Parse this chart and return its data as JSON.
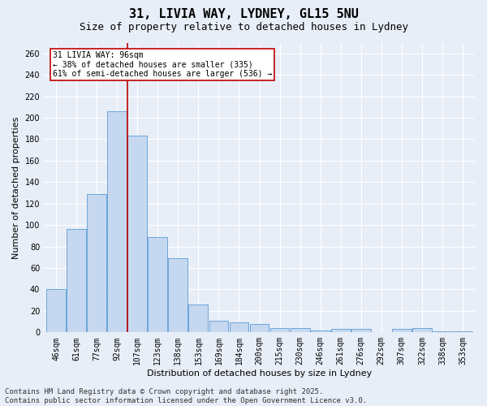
{
  "title_line1": "31, LIVIA WAY, LYDNEY, GL15 5NU",
  "title_line2": "Size of property relative to detached houses in Lydney",
  "xlabel": "Distribution of detached houses by size in Lydney",
  "ylabel": "Number of detached properties",
  "categories": [
    "46sqm",
    "61sqm",
    "77sqm",
    "92sqm",
    "107sqm",
    "123sqm",
    "138sqm",
    "153sqm",
    "169sqm",
    "184sqm",
    "200sqm",
    "215sqm",
    "230sqm",
    "246sqm",
    "261sqm",
    "276sqm",
    "292sqm",
    "307sqm",
    "322sqm",
    "338sqm",
    "353sqm"
  ],
  "values": [
    40,
    96,
    129,
    206,
    183,
    89,
    69,
    26,
    11,
    9,
    8,
    4,
    4,
    2,
    3,
    3,
    0,
    3,
    4,
    1,
    1
  ],
  "bar_color": "#c5d8f0",
  "bar_edge_color": "#5b9bd5",
  "background_color": "#e8eef7",
  "grid_color": "#ffffff",
  "vline_x": 3.5,
  "vline_color": "#c00000",
  "annotation_line1": "31 LIVIA WAY: 96sqm",
  "annotation_line2": "← 38% of detached houses are smaller (335)",
  "annotation_line3": "61% of semi-detached houses are larger (536) →",
  "annotation_box_color": "#ffffff",
  "annotation_box_edge_color": "#c00000",
  "ylim": [
    0,
    270
  ],
  "yticks": [
    0,
    20,
    40,
    60,
    80,
    100,
    120,
    140,
    160,
    180,
    200,
    220,
    240,
    260
  ],
  "footer_line1": "Contains HM Land Registry data © Crown copyright and database right 2025.",
  "footer_line2": "Contains public sector information licensed under the Open Government Licence v3.0.",
  "title_fontsize": 11,
  "subtitle_fontsize": 9,
  "axis_label_fontsize": 8,
  "tick_fontsize": 7,
  "annotation_fontsize": 7,
  "footer_fontsize": 6.5
}
